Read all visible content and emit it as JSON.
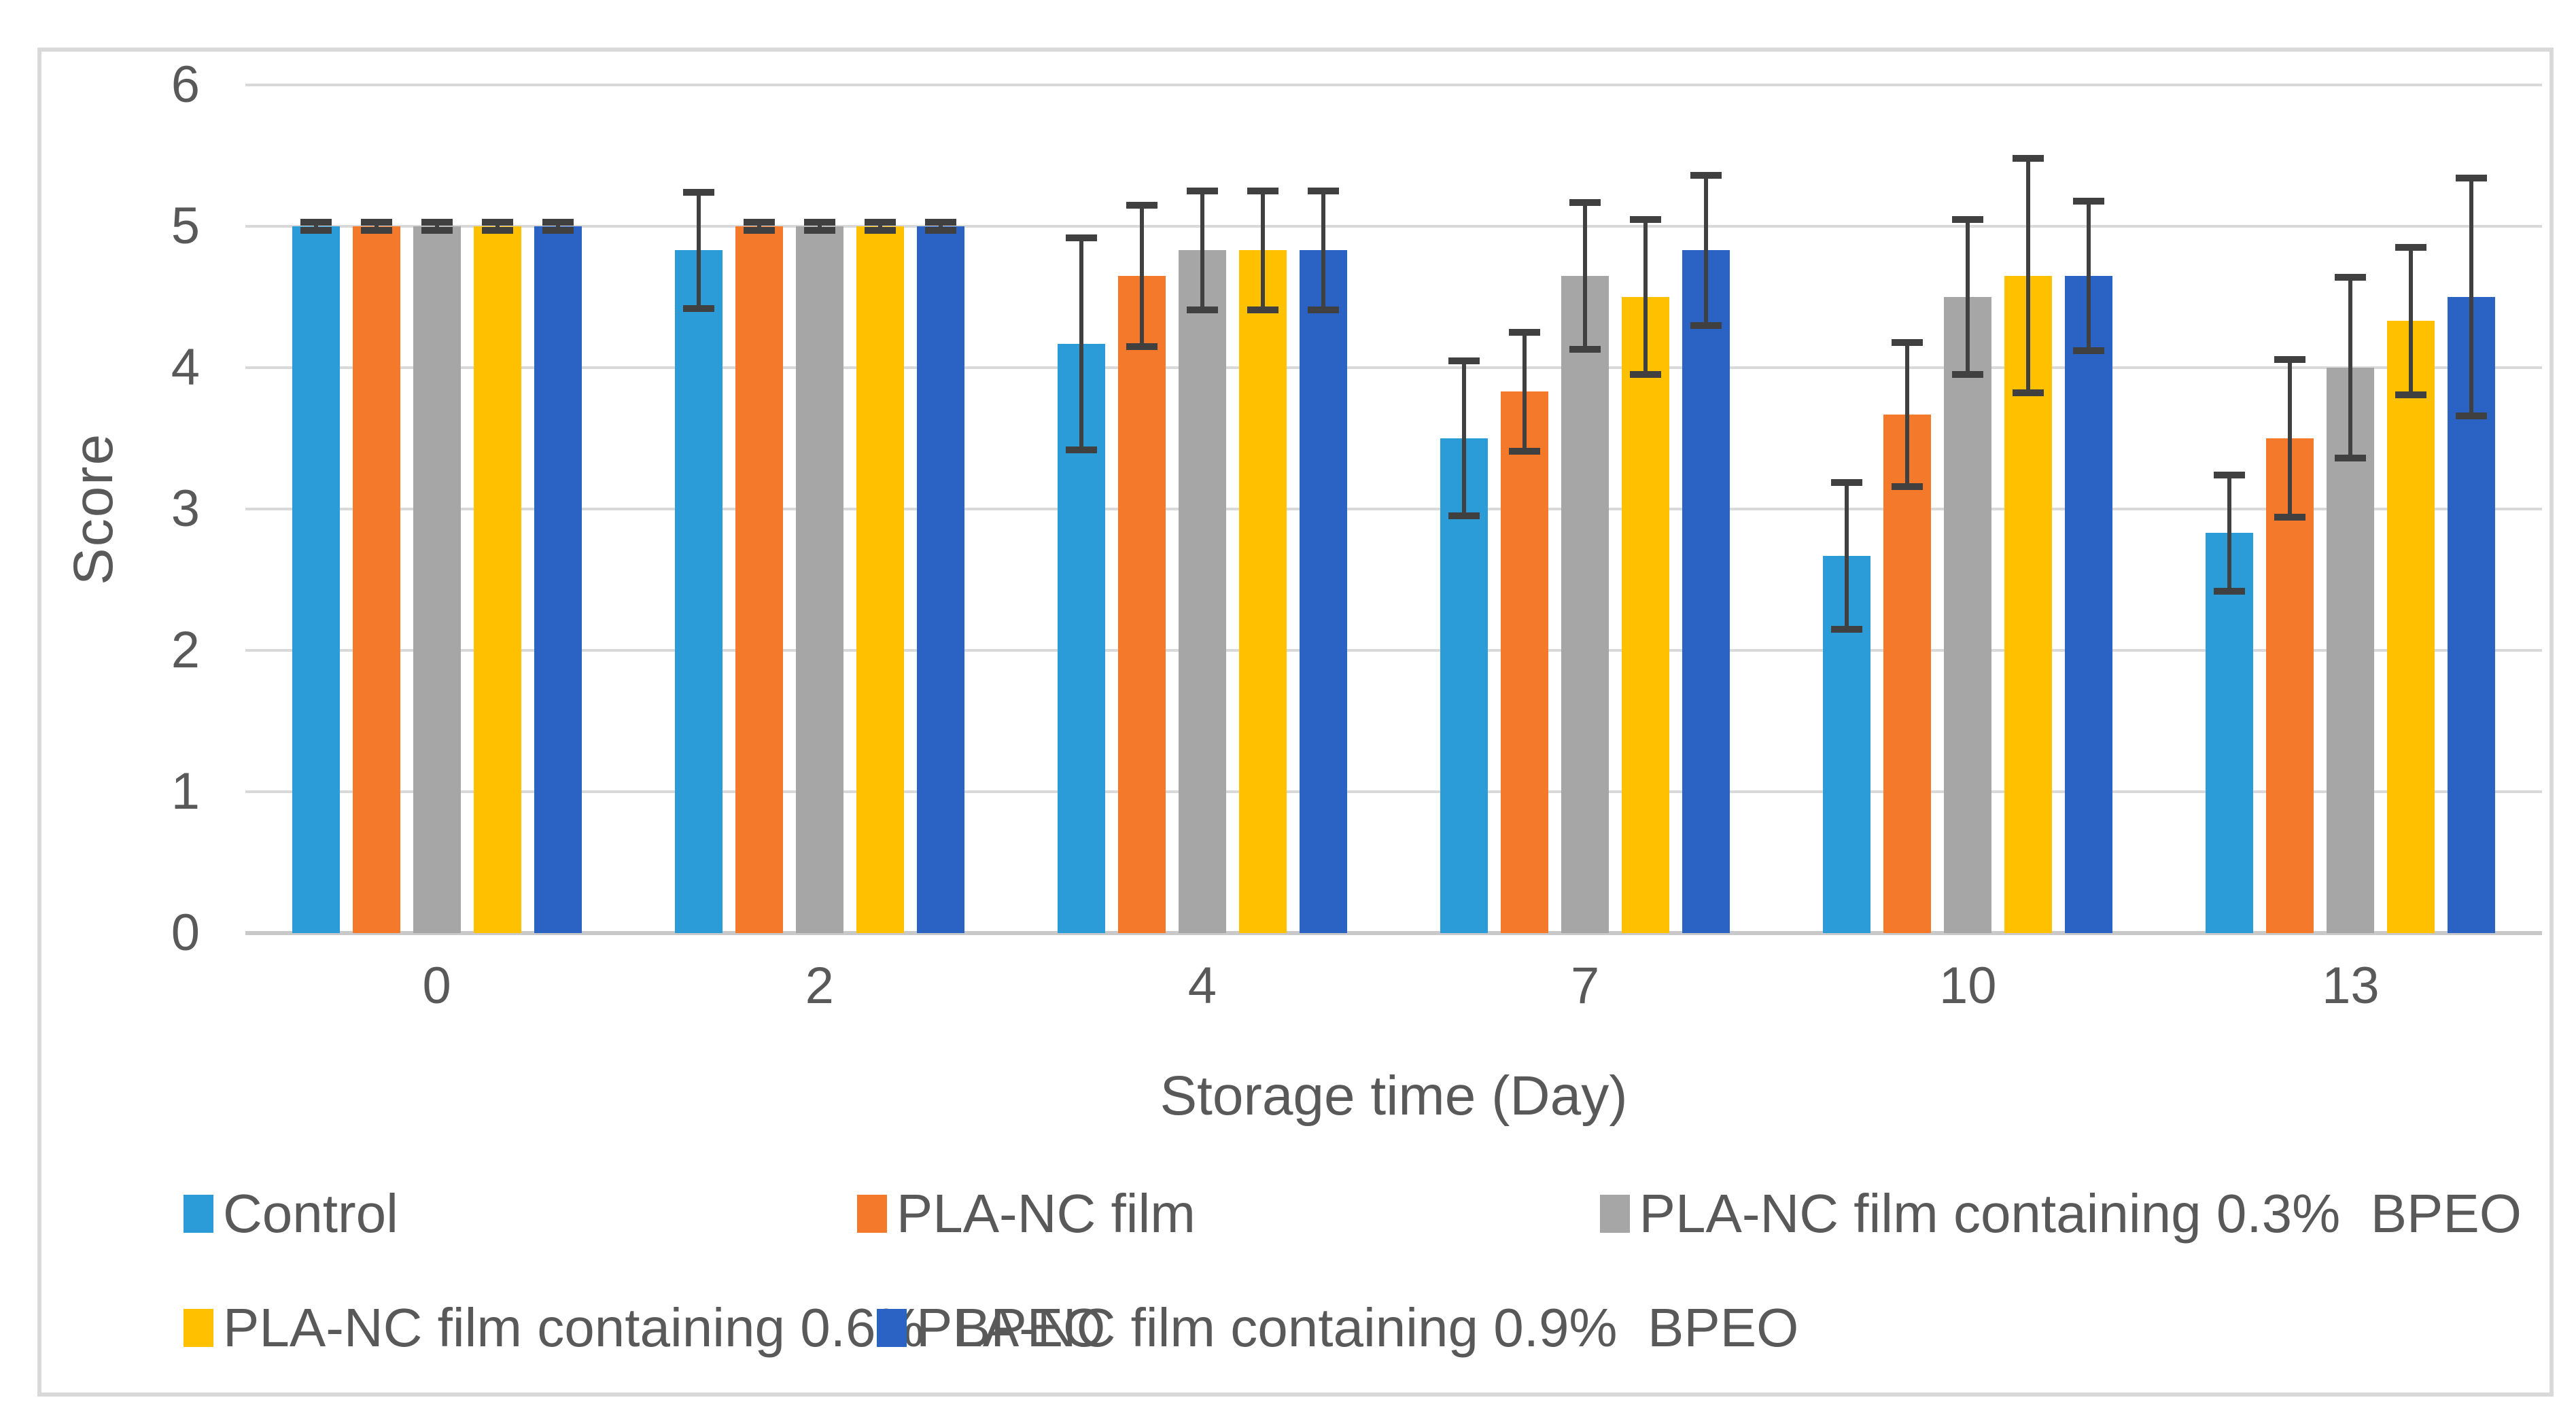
{
  "figure": {
    "background": "#ffffff",
    "border_color": "#d9d9d9"
  },
  "chart_data": {
    "type": "bar",
    "title": "",
    "xlabel": "Storage time (Day)",
    "ylabel": "Score",
    "ylim": [
      0,
      6
    ],
    "yticks": [
      0,
      1,
      2,
      3,
      4,
      5,
      6
    ],
    "grid": true,
    "legend_position": "bottom",
    "grid_color": "#d9d9d9",
    "axis_text_color": "#595959",
    "error_bar_color": "#404040",
    "categories": [
      "0",
      "2",
      "4",
      "7",
      "10",
      "13"
    ],
    "series": [
      {
        "name": "Control",
        "color": "#2B9CD7",
        "values": [
          5.0,
          4.83,
          4.17,
          3.5,
          2.67,
          2.83
        ],
        "errors": [
          0.03,
          0.41,
          0.75,
          0.55,
          0.52,
          0.41
        ]
      },
      {
        "name": "PLA-NC film",
        "color": "#F5792B",
        "values": [
          5.0,
          5.0,
          4.65,
          3.83,
          3.67,
          3.5
        ],
        "errors": [
          0.03,
          0.03,
          0.5,
          0.42,
          0.51,
          0.56
        ]
      },
      {
        "name": "PLA-NC film containing 0.3%  BPEO",
        "color": "#A6A6A6",
        "values": [
          5.0,
          5.0,
          4.83,
          4.65,
          4.5,
          4.0
        ],
        "errors": [
          0.03,
          0.03,
          0.42,
          0.52,
          0.55,
          0.64
        ]
      },
      {
        "name": "PLA-NC film containing 0.6%  BPEO",
        "color": "#FFC000",
        "values": [
          5.0,
          5.0,
          4.83,
          4.5,
          4.65,
          4.33
        ],
        "errors": [
          0.03,
          0.03,
          0.42,
          0.55,
          0.83,
          0.52
        ]
      },
      {
        "name": "PLA-NC film containing 0.9%  BPEO",
        "color": "#2A63C4",
        "values": [
          5.0,
          5.0,
          4.83,
          4.83,
          4.65,
          4.5
        ],
        "errors": [
          0.03,
          0.03,
          0.42,
          0.53,
          0.53,
          0.84
        ]
      }
    ]
  }
}
